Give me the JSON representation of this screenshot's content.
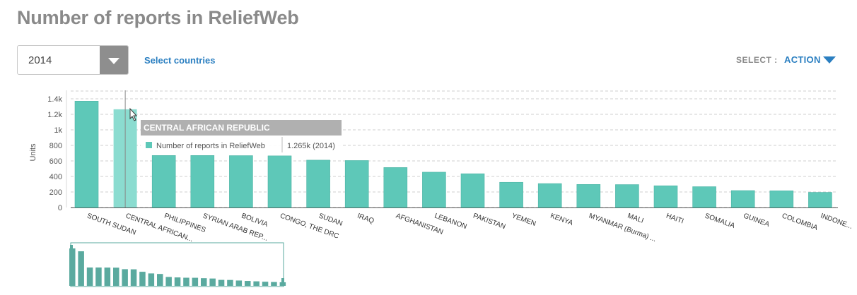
{
  "title": "Number of reports in ReliefWeb",
  "controls": {
    "year": "2014",
    "select_countries": "Select countries",
    "select_label": "SELECT :",
    "action_label": "ACTION"
  },
  "tooltip": {
    "country": "CENTRAL AFRICAN REPUBLIC",
    "series": "Number of reports in ReliefWeb",
    "value": "1.265k (2014)"
  },
  "colors": {
    "bar": "#5ec8b8",
    "bar_highlight": "#8bdcd0",
    "tooltip_header": "#b0b0b0",
    "accent": "#2b7fc1"
  },
  "chart_data": {
    "type": "bar",
    "ylabel": "Units",
    "ylim": [
      0,
      1400
    ],
    "y_ticks": [
      "0",
      "200",
      "400",
      "600",
      "800",
      "1k",
      "1.2k",
      "1.4k"
    ],
    "grid": true,
    "categories": [
      "SOUTH SUDAN",
      "CENTRAL AFRICAN...",
      "PHILIPPINES",
      "SYRIAN ARAB REP...",
      "BOLIVIA",
      "CONGO, THE DRC",
      "SUDAN",
      "IRAQ",
      "AFGHANISTAN",
      "LEBANON",
      "PAKISTAN",
      "YEMEN",
      "KENYA",
      "MYANMAR (Burma) ...",
      "MALI",
      "HAITI",
      "SOMALIA",
      "GUINEA",
      "COLOMBIA",
      "INDONE..."
    ],
    "series": [
      {
        "name": "Number of reports in ReliefWeb",
        "values": [
          1370,
          1265,
          670,
          670,
          668,
          665,
          610,
          605,
          515,
          455,
          435,
          325,
          308,
          297,
          295,
          280,
          268,
          218,
          215,
          195
        ]
      }
    ],
    "highlighted_index": 1
  },
  "overview_values": [
    1370,
    1265,
    670,
    670,
    668,
    665,
    610,
    605,
    515,
    455,
    435,
    325,
    308,
    297,
    295,
    280,
    268,
    218,
    215,
    195,
    180,
    165,
    150,
    140,
    130,
    120,
    110,
    100,
    92,
    85,
    78,
    70
  ]
}
